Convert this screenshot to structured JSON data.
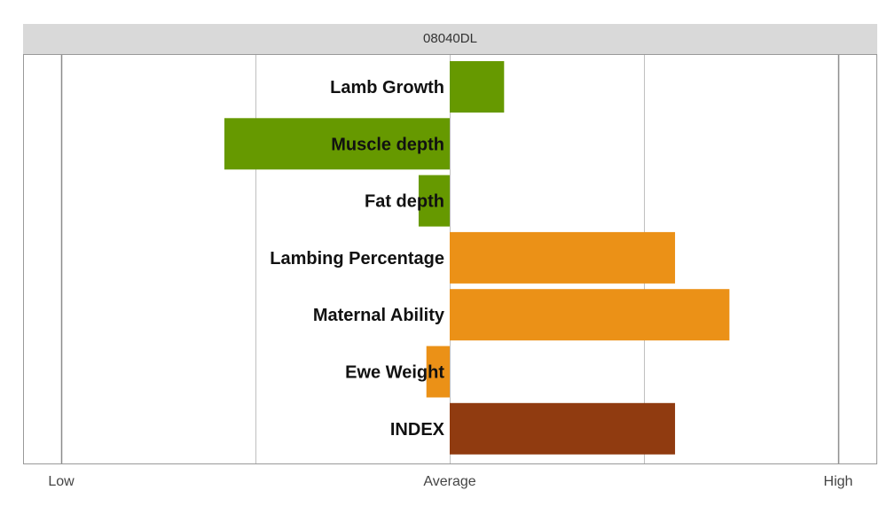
{
  "chart_data": {
    "type": "bar",
    "orientation": "horizontal",
    "title": "08040DL",
    "categories": [
      "Lamb Growth",
      "Muscle depth",
      "Fat depth",
      "Lambing Percentage",
      "Maternal Ability",
      "Ewe Weight",
      "INDEX"
    ],
    "values": [
      0.14,
      -0.58,
      -0.08,
      0.58,
      0.72,
      -0.06,
      0.58
    ],
    "colors": [
      "#669900",
      "#669900",
      "#669900",
      "#eb9117",
      "#eb9117",
      "#eb9117",
      "#903b10"
    ],
    "xlim": [
      -1,
      1
    ],
    "x_tick_labels": [
      {
        "value": -1,
        "label": "Low"
      },
      {
        "value": 0,
        "label": "Average"
      },
      {
        "value": 1,
        "label": "High"
      }
    ],
    "gridlines": [
      -1,
      -0.5,
      0,
      0.5,
      1
    ],
    "grid": true,
    "legend": "none"
  }
}
